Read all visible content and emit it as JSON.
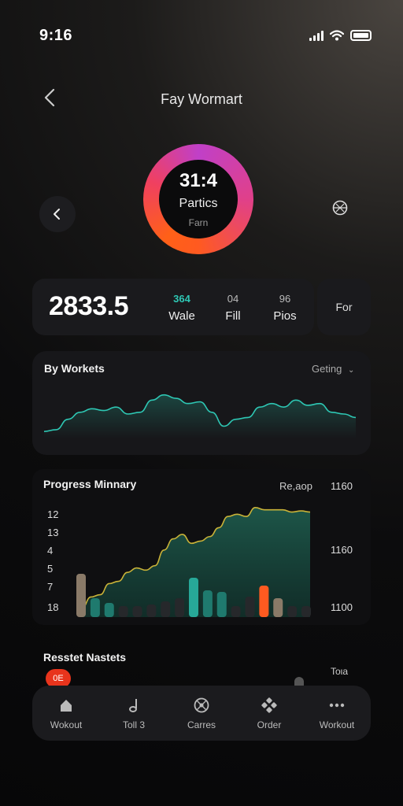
{
  "status_bar": {
    "time": "9:16"
  },
  "header": {
    "title": "Fay Wormart"
  },
  "ring": {
    "value": "31:4",
    "label": "Partics",
    "sub": "Farn",
    "progress": 1.0
  },
  "stats": {
    "big_value": "2833.5",
    "items": [
      {
        "value": "364",
        "label": "Wale"
      },
      {
        "value": "04",
        "label": "Fill"
      },
      {
        "value": "96",
        "label": "Pios"
      }
    ],
    "side_button": "For"
  },
  "workets": {
    "title": "By Workets",
    "dropdown": "Geting",
    "series": [
      8,
      10,
      22,
      30,
      34,
      32,
      36,
      28,
      30,
      44,
      50,
      46,
      40,
      42,
      30,
      14,
      22,
      24,
      36,
      40,
      36,
      44,
      38,
      40,
      30,
      28,
      24
    ]
  },
  "progress": {
    "title": "Progress Minnary",
    "dropdown": "Re,aop",
    "y_labels": [
      "12",
      "13",
      "4",
      "5",
      "7",
      "18"
    ],
    "right_labels": [
      "1160",
      "1160",
      "1100"
    ],
    "area": [
      8,
      18,
      20,
      30,
      32,
      40,
      44,
      42,
      46,
      60,
      70,
      74,
      66,
      68,
      72,
      80,
      90,
      92,
      90,
      98,
      96,
      96,
      96,
      94,
      95,
      94
    ],
    "bars": [
      55,
      24,
      18,
      14,
      14,
      16,
      20,
      24,
      50,
      34,
      32,
      14,
      26,
      40,
      24,
      14,
      14
    ]
  },
  "recent": {
    "title": "Resstet Nastets",
    "badge": "0E",
    "right_text": "Toιa"
  },
  "nav": [
    {
      "label": "Wokout",
      "icon": "home-icon"
    },
    {
      "label": "Toll 3",
      "icon": "music-icon"
    },
    {
      "label": "Carres",
      "icon": "ball-icon"
    },
    {
      "label": "Order",
      "icon": "grid-icon"
    },
    {
      "label": "Workout",
      "icon": "more-icon"
    }
  ],
  "colors": {
    "teal": "#2ec7b4",
    "orange": "#ff5a20",
    "accent_pink": "#c040c8"
  }
}
